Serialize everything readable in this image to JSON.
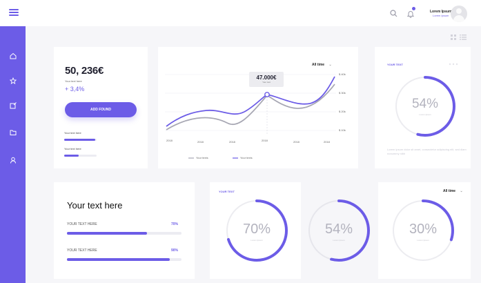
{
  "header": {
    "user_name": "Lorem Ipsum",
    "user_link": "Lorem Ipsum",
    "icons": [
      "menu-icon",
      "search-icon",
      "bell-icon",
      "avatar"
    ]
  },
  "sidebar": {
    "items": [
      {
        "icon": "home-icon",
        "active": true
      },
      {
        "icon": "star-icon"
      },
      {
        "icon": "edit-icon"
      },
      {
        "icon": "folder-icon"
      },
      {
        "icon": "user-icon"
      }
    ]
  },
  "colors": {
    "accent": "#6c5ce7",
    "secondary": "#a7a7b3",
    "background": "#f6f6f9"
  },
  "stats_card": {
    "value": "50, 236€",
    "value_label": "Your text here",
    "growth": "+ 3,4%",
    "button_label": "ADD FOUND",
    "rows": [
      {
        "label": "Your text here",
        "fraction": 0.95
      },
      {
        "label": "Your text here",
        "fraction": 0.45
      }
    ]
  },
  "line_chart": {
    "filter": "All time",
    "tooltip_value": "47.000€",
    "tooltip_label": "Your text",
    "y_ticks": [
      "$ 40k",
      "$ 30k",
      "$ 20k",
      "$ 10k"
    ],
    "x_ticks": [
      "2018",
      "2018",
      "2018",
      "2018",
      "2018",
      "2018"
    ],
    "legend": [
      "Your texts",
      "Your texts"
    ]
  },
  "gauge_card_top": {
    "heading": "YOUR TEXT",
    "percent": "54%",
    "value": 0.54,
    "sublabel": "Lorem Ipsum",
    "body": "Lorem ipsum dolor sit amet, consectetur adipiscing elit, sed diam nonummy nibh"
  },
  "progress_card": {
    "title": "Your text here",
    "bars": [
      {
        "label": "YOUR TEXT HERE",
        "value_label": "70%",
        "value": 0.7
      },
      {
        "label": "YOUR TEXT HERE",
        "value_label": "90%",
        "value": 0.9
      }
    ]
  },
  "gauge_row": {
    "heading": "YOUR TEXT",
    "filter": "All time",
    "gauges": [
      {
        "percent": "70%",
        "value": 0.7,
        "sublabel": "Lorem Ipsum"
      },
      {
        "percent": "54%",
        "value": 0.54,
        "sublabel": "Lorem Ipsum"
      },
      {
        "percent": "30%",
        "value": 0.3,
        "sublabel": "Lorem Ipsum"
      }
    ]
  }
}
